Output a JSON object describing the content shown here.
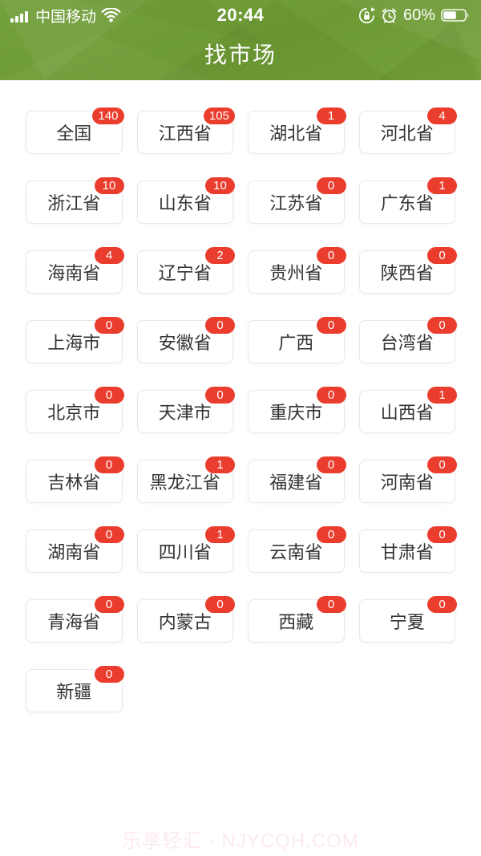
{
  "status_bar": {
    "carrier": "中国移动",
    "time": "20:44",
    "battery_percent": "60%",
    "battery_level": 0.6,
    "icons": [
      "signal-strength",
      "wifi",
      "orientation-lock",
      "alarm-clock",
      "battery"
    ]
  },
  "header": {
    "title": "找市场"
  },
  "provinces": [
    {
      "label": "全国",
      "badge": "140"
    },
    {
      "label": "江西省",
      "badge": "105"
    },
    {
      "label": "湖北省",
      "badge": "1"
    },
    {
      "label": "河北省",
      "badge": "4"
    },
    {
      "label": "浙江省",
      "badge": "10"
    },
    {
      "label": "山东省",
      "badge": "10"
    },
    {
      "label": "江苏省",
      "badge": "0"
    },
    {
      "label": "广东省",
      "badge": "1"
    },
    {
      "label": "海南省",
      "badge": "4"
    },
    {
      "label": "辽宁省",
      "badge": "2"
    },
    {
      "label": "贵州省",
      "badge": "0"
    },
    {
      "label": "陕西省",
      "badge": "0"
    },
    {
      "label": "上海市",
      "badge": "0"
    },
    {
      "label": "安徽省",
      "badge": "0"
    },
    {
      "label": "广西",
      "badge": "0"
    },
    {
      "label": "台湾省",
      "badge": "0"
    },
    {
      "label": "北京市",
      "badge": "0"
    },
    {
      "label": "天津市",
      "badge": "0"
    },
    {
      "label": "重庆市",
      "badge": "0"
    },
    {
      "label": "山西省",
      "badge": "1"
    },
    {
      "label": "吉林省",
      "badge": "0"
    },
    {
      "label": "黑龙江省",
      "badge": "1"
    },
    {
      "label": "福建省",
      "badge": "0"
    },
    {
      "label": "河南省",
      "badge": "0"
    },
    {
      "label": "湖南省",
      "badge": "0"
    },
    {
      "label": "四川省",
      "badge": "1"
    },
    {
      "label": "云南省",
      "badge": "0"
    },
    {
      "label": "甘肃省",
      "badge": "0"
    },
    {
      "label": "青海省",
      "badge": "0"
    },
    {
      "label": "内蒙古",
      "badge": "0"
    },
    {
      "label": "西藏",
      "badge": "0"
    },
    {
      "label": "宁夏",
      "badge": "0"
    },
    {
      "label": "新疆",
      "badge": "0"
    }
  ],
  "footer": {
    "watermark": "乐享轻汇 · NJYCQH.COM"
  },
  "colors": {
    "header_green": "#6d9a34",
    "badge_red": "#ea3d2e",
    "watermark_pink": "#fce9f4",
    "button_text": "#333333",
    "button_border": "#e8e8e8"
  }
}
